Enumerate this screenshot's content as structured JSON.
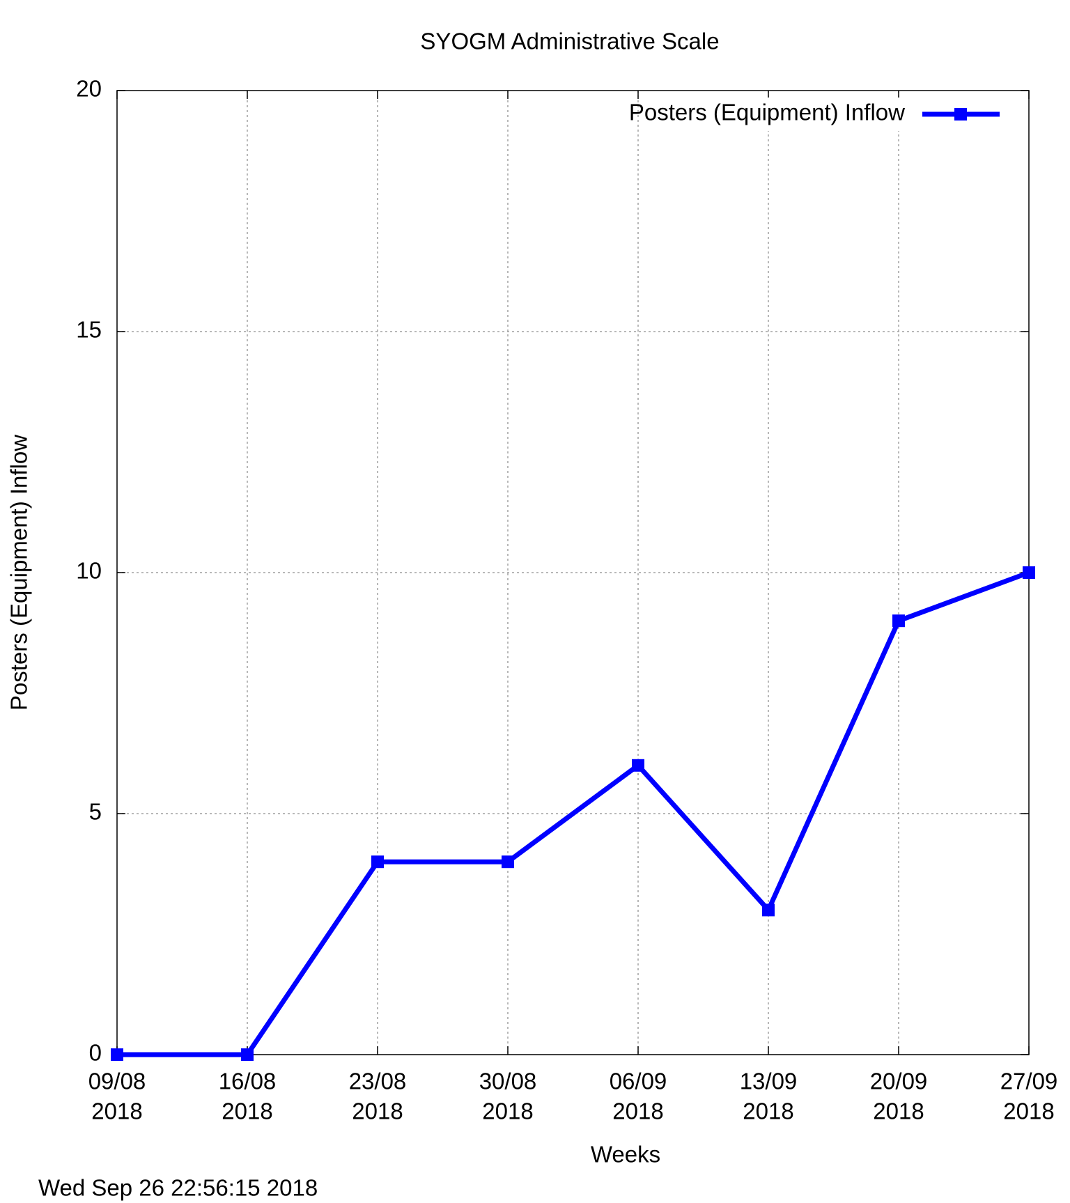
{
  "chart_data": {
    "type": "line",
    "title": "SYOGM Administrative Scale",
    "x_label": "Weeks",
    "y_label": "Posters (Equipment) Inflow",
    "footer": "Wed Sep 26 22:56:15 2018",
    "categories": [
      [
        "09/08",
        "2018"
      ],
      [
        "16/08",
        "2018"
      ],
      [
        "23/08",
        "2018"
      ],
      [
        "30/08",
        "2018"
      ],
      [
        "06/09",
        "2018"
      ],
      [
        "13/09",
        "2018"
      ],
      [
        "20/09",
        "2018"
      ],
      [
        "27/09",
        "2018"
      ]
    ],
    "series": [
      {
        "name": "Posters (Equipment) Inflow",
        "color": "#0000ff",
        "values": [
          0,
          0,
          4,
          4,
          6,
          3,
          9,
          10
        ]
      }
    ],
    "ylim": [
      0,
      20
    ],
    "yticks": [
      0,
      5,
      10,
      15,
      20
    ],
    "grid": true,
    "legend": "top-right"
  }
}
